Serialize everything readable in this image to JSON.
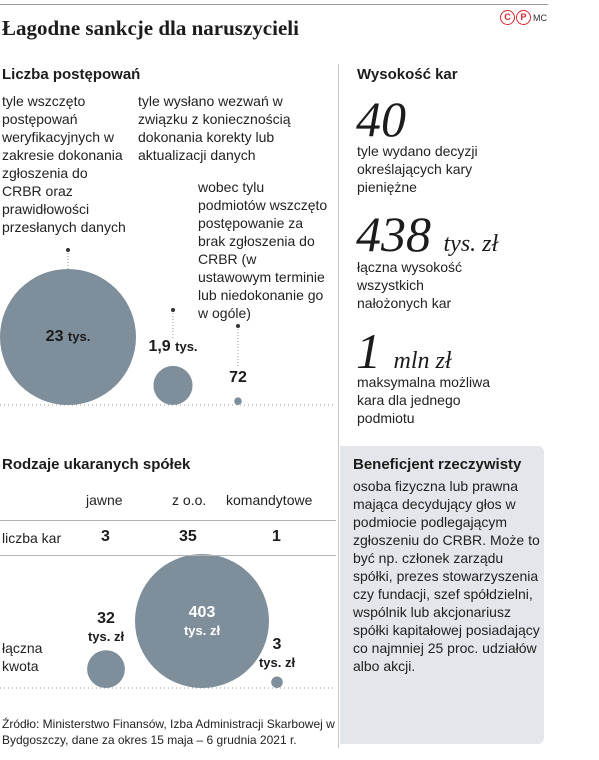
{
  "title": "Łagodne sankcje dla naruszycieli",
  "logo": {
    "c": "C",
    "p": "P",
    "mc": "MC"
  },
  "proceedings": {
    "heading": "Liczba postępowań",
    "annotations": [
      "tyle wszczęto postępowań weryfikacyjnych w zakresie dokonania zgłoszenia do CRBR oraz prawidłowości przesłanych danych",
      "tyle wysłano wezwań w związku z koniecznością dokonania korekty lub aktualizacji danych",
      "wobec tylu podmiotów wszczęto postępowanie za brak zgłoszenia do CRBR (w ustawowym terminie lub niedokonanie go w ogóle)"
    ]
  },
  "penalties": {
    "heading": "Wysokość kar",
    "items": [
      {
        "value": "40",
        "unit": "",
        "desc": "tyle wydano decyzji określających kary pieniężne"
      },
      {
        "value": "438",
        "unit": "tys. zł",
        "desc": "łączna wysokość wszystkich nałożonych kar"
      },
      {
        "value": "1",
        "unit": "mln zł",
        "desc": "maksymalna możliwa kara dla jednego podmiotu"
      }
    ]
  },
  "companies": {
    "heading": "Rodzaje ukaranych spółek",
    "columns": [
      "jawne",
      "z o.o.",
      "komandytowe"
    ],
    "row1_label": "liczba kar",
    "row2_label": "łączna kwota",
    "counts": [
      "3",
      "35",
      "1"
    ]
  },
  "beneficiary": {
    "heading": "Beneficjent rzeczywisty",
    "text": "osoba fizyczna lub prawna mająca decydujący głos w podmiocie podlegającym zgłoszeniu do CRBR. Może to być np. członek zarządu spółki, prezes stowarzyszenia czy fundacji, szef spółdzielni, wspólnik lub akcjonariusz spółki kapitałowej posiadający co najmniej 25 proc. udziałów albo akcji."
  },
  "source": "Źródło: Ministerstwo Finansów, Izba Administracji Skarbowej w Bydgoszczy, dane za okres 15 maja – 6 grudnia 2021 r.",
  "colors": {
    "bubble": "#7e8f9b",
    "dotline": "#9a9a9a",
    "panel": "#e3e6ea"
  },
  "chart_data": [
    {
      "type": "bubble",
      "categories": [
        "postępowania weryfikacyjne",
        "wezwania",
        "brak zgłoszenia"
      ],
      "values": [
        23000,
        1900,
        72
      ],
      "labels": [
        {
          "num": "23",
          "unit": "tys."
        },
        {
          "num": "1,9",
          "unit": "tys."
        },
        {
          "num": "72",
          "unit": ""
        }
      ]
    },
    {
      "type": "bubble",
      "categories": [
        "jawne",
        "z o.o.",
        "komandytowe"
      ],
      "values": [
        32,
        403,
        3
      ],
      "labels": [
        {
          "num": "32",
          "unit": "tys. zł"
        },
        {
          "num": "403",
          "unit": "tys. zł"
        },
        {
          "num": "3",
          "unit": "tys. zł"
        }
      ]
    }
  ]
}
